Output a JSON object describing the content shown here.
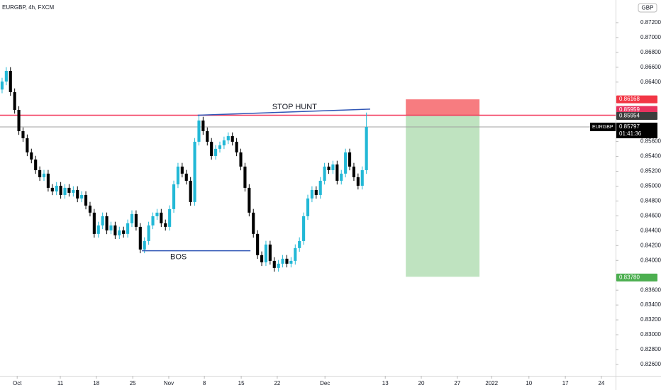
{
  "chart_data": {
    "type": "candlestick",
    "title": "EURGBP, 4h, FXCM",
    "currency": "GBP",
    "up_color": "#22b8d6",
    "down_color": "#000000",
    "grid": false,
    "xlim": [
      0,
      147
    ],
    "ylim": [
      0.82447,
      0.87505
    ],
    "open": [
      0.863,
      0.86408,
      0.86551,
      0.86265,
      0.86026,
      0.8574,
      0.85645,
      0.85454,
      0.85358,
      0.85215,
      0.8512,
      0.85168,
      0.84977,
      0.84929,
      0.85005,
      0.84881,
      0.84977,
      0.8491,
      0.84948,
      0.84834,
      0.84881,
      0.84738,
      0.84643,
      0.84357,
      0.84471,
      0.84595,
      0.84404,
      0.84471,
      0.84338,
      0.84404,
      0.84357,
      0.845,
      0.84624,
      0.84452,
      0.84147,
      0.84261,
      0.84471,
      0.84595,
      0.84643,
      0.845,
      0.84452,
      0.84691,
      0.85024,
      0.85263,
      0.85168,
      0.85072,
      0.84786,
      0.85597,
      0.85883,
      0.8574,
      0.85597,
      0.85406,
      0.85502,
      0.85549,
      0.85616,
      0.85673,
      0.85597,
      0.85454,
      0.85263,
      0.84977,
      0.84643,
      0.84357,
      0.84071,
      0.83975,
      0.84214,
      0.83994,
      0.83899,
      0.83956,
      0.84023,
      0.83956,
      0.83994,
      0.84166,
      0.84261,
      0.84595,
      0.84834,
      0.84948,
      0.84881,
      0.85072,
      0.85263,
      0.85215,
      0.85292,
      0.85072,
      0.85168,
      0.85454,
      0.85263,
      0.8512,
      0.85005,
      0.85215
    ],
    "high": [
      0.86458,
      0.86601,
      0.86601,
      0.86315,
      0.86076,
      0.8579,
      0.85695,
      0.85504,
      0.85408,
      0.85265,
      0.85218,
      0.85218,
      0.85027,
      0.85055,
      0.85055,
      0.85027,
      0.85027,
      0.84998,
      0.84998,
      0.84931,
      0.84931,
      0.84788,
      0.84693,
      0.84521,
      0.84645,
      0.84645,
      0.84521,
      0.84521,
      0.84454,
      0.84454,
      0.8455,
      0.84674,
      0.84674,
      0.84502,
      0.84311,
      0.84521,
      0.84645,
      0.84693,
      0.84693,
      0.8455,
      0.84741,
      0.85074,
      0.85313,
      0.85313,
      0.85218,
      0.85122,
      0.85647,
      0.8596,
      0.85933,
      0.8579,
      0.85647,
      0.85552,
      0.85599,
      0.85666,
      0.85723,
      0.85723,
      0.85647,
      0.85504,
      0.85313,
      0.85027,
      0.84693,
      0.84407,
      0.84121,
      0.84264,
      0.84264,
      0.84044,
      0.84006,
      0.84073,
      0.84073,
      0.84044,
      0.84216,
      0.84311,
      0.84645,
      0.84884,
      0.84998,
      0.84998,
      0.85122,
      0.85313,
      0.85313,
      0.85342,
      0.85342,
      0.85218,
      0.85504,
      0.85504,
      0.85313,
      0.8517,
      0.85265,
      0.8599
    ],
    "low": [
      0.8625,
      0.86358,
      0.86215,
      0.85976,
      0.8569,
      0.85595,
      0.85404,
      0.85308,
      0.85165,
      0.8507,
      0.8507,
      0.84927,
      0.84879,
      0.84879,
      0.84831,
      0.84831,
      0.8486,
      0.8486,
      0.84784,
      0.84784,
      0.84688,
      0.84593,
      0.84307,
      0.84307,
      0.84421,
      0.84354,
      0.84354,
      0.84288,
      0.84288,
      0.84307,
      0.84307,
      0.8445,
      0.84402,
      0.84097,
      0.84097,
      0.84211,
      0.84421,
      0.84545,
      0.8445,
      0.84402,
      0.84402,
      0.84641,
      0.84974,
      0.85118,
      0.85022,
      0.84736,
      0.84736,
      0.85547,
      0.8569,
      0.85547,
      0.85356,
      0.85356,
      0.85452,
      0.85499,
      0.85566,
      0.85547,
      0.85404,
      0.85213,
      0.84927,
      0.84593,
      0.84307,
      0.84021,
      0.83925,
      0.83925,
      0.83944,
      0.83849,
      0.83849,
      0.83906,
      0.83906,
      0.83906,
      0.83944,
      0.84116,
      0.84211,
      0.84545,
      0.84784,
      0.84831,
      0.84831,
      0.85022,
      0.85165,
      0.85165,
      0.85022,
      0.85022,
      0.85118,
      0.85213,
      0.8507,
      0.84955,
      0.84955,
      0.85165
    ],
    "close": [
      0.86408,
      0.86551,
      0.86265,
      0.86026,
      0.8574,
      0.85645,
      0.85454,
      0.85358,
      0.85215,
      0.8512,
      0.85168,
      0.84977,
      0.84929,
      0.85005,
      0.84881,
      0.84977,
      0.8491,
      0.84948,
      0.84834,
      0.84881,
      0.84738,
      0.84643,
      0.84357,
      0.84471,
      0.84595,
      0.84404,
      0.84471,
      0.84338,
      0.84404,
      0.84357,
      0.845,
      0.84624,
      0.84452,
      0.84147,
      0.84261,
      0.84471,
      0.84595,
      0.84643,
      0.845,
      0.84452,
      0.84691,
      0.85024,
      0.85263,
      0.85168,
      0.85072,
      0.84786,
      0.85597,
      0.85883,
      0.8574,
      0.85597,
      0.85406,
      0.85502,
      0.85549,
      0.85616,
      0.85673,
      0.85597,
      0.85454,
      0.85263,
      0.84977,
      0.84643,
      0.84357,
      0.84071,
      0.83975,
      0.84214,
      0.83994,
      0.83899,
      0.83956,
      0.84023,
      0.83956,
      0.83994,
      0.84166,
      0.84261,
      0.84595,
      0.84834,
      0.84948,
      0.84881,
      0.85072,
      0.85263,
      0.85215,
      0.85292,
      0.85072,
      0.85168,
      0.85454,
      0.85263,
      0.8512,
      0.85005,
      0.85215,
      0.85797
    ],
    "yticks": [
      {
        "value": 0.872,
        "label": "0.87200"
      },
      {
        "value": 0.87,
        "label": "0.87000"
      },
      {
        "value": 0.868,
        "label": "0.86800"
      },
      {
        "value": 0.866,
        "label": "0.86600"
      },
      {
        "value": 0.864,
        "label": "0.86400"
      },
      {
        "value": 0.856,
        "label": "0.85600"
      },
      {
        "value": 0.854,
        "label": "0.85400"
      },
      {
        "value": 0.852,
        "label": "0.85200"
      },
      {
        "value": 0.85,
        "label": "0.85000"
      },
      {
        "value": 0.848,
        "label": "0.84800"
      },
      {
        "value": 0.846,
        "label": "0.84600"
      },
      {
        "value": 0.844,
        "label": "0.84400"
      },
      {
        "value": 0.842,
        "label": "0.84200"
      },
      {
        "value": 0.84,
        "label": "0.84000"
      },
      {
        "value": 0.836,
        "label": "0.83600"
      },
      {
        "value": 0.834,
        "label": "0.83400"
      },
      {
        "value": 0.832,
        "label": "0.83200"
      },
      {
        "value": 0.83,
        "label": "0.83000"
      },
      {
        "value": 0.828,
        "label": "0.82800"
      },
      {
        "value": 0.826,
        "label": "0.82600"
      }
    ],
    "xticks": [
      {
        "value": 4.1,
        "label": "Oct"
      },
      {
        "value": 14.4,
        "label": "11"
      },
      {
        "value": 23.0,
        "label": "18"
      },
      {
        "value": 31.7,
        "label": "25"
      },
      {
        "value": 40.3,
        "label": "Nov"
      },
      {
        "value": 48.8,
        "label": "8"
      },
      {
        "value": 57.6,
        "label": "15"
      },
      {
        "value": 66.2,
        "label": "22"
      },
      {
        "value": 77.6,
        "label": "Dec"
      },
      {
        "value": 92.0,
        "label": "13"
      },
      {
        "value": 100.6,
        "label": "20"
      },
      {
        "value": 109.2,
        "label": "27"
      },
      {
        "value": 117.4,
        "label": "2022"
      },
      {
        "value": 126.3,
        "label": "10"
      },
      {
        "value": 135.0,
        "label": "17"
      },
      {
        "value": 143.6,
        "label": "24"
      }
    ],
    "hlines": [
      {
        "value": 0.85797,
        "color": "#a0a0a0"
      },
      {
        "value": 0.85954,
        "color": "#f2365a"
      }
    ],
    "position": {
      "entry": 0.85954,
      "stop": 0.86168,
      "target": 0.8378,
      "x": [
        96.9,
        114.5
      ],
      "stop_color": "#f77c80",
      "target_color": "#bfe3c0"
    },
    "annotations": [
      {
        "text": "STOP HUNT",
        "x": [
          47.2,
          88.4
        ],
        "y": [
          0.85954,
          0.86036
        ],
        "color": "#2f55b5"
      },
      {
        "text": "BOS",
        "x": [
          33.9,
          59.8
        ],
        "y": [
          0.8413,
          0.8413
        ],
        "color": "#2f55b5"
      }
    ],
    "price_badges": [
      {
        "value": 0.86168,
        "label": "0.86168",
        "color": "#f23645"
      },
      {
        "value": 0.85959,
        "label": "0.85959",
        "color": "#e8335f"
      },
      {
        "value": 0.85954,
        "label": "0.85954",
        "color": "#3d3d3d"
      },
      {
        "value": 0.8378,
        "label": "0.83780",
        "color": "#4caf50"
      }
    ],
    "last_price": {
      "symbol": "EURGBP",
      "value": 0.85797,
      "label": "0.85797",
      "countdown": "01:41:36"
    }
  }
}
